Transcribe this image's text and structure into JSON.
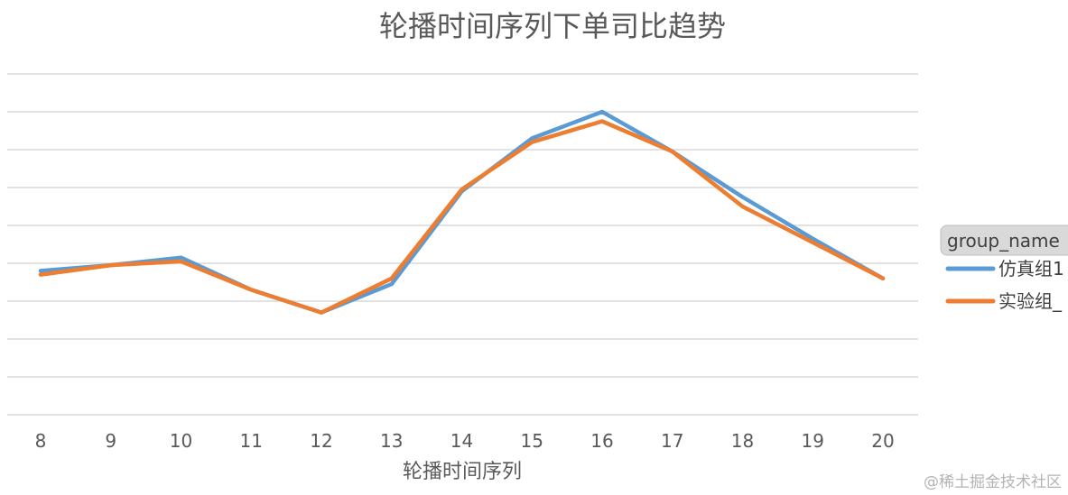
{
  "chart_data": {
    "type": "line",
    "title": "轮播时间序列下单司比趋势",
    "xlabel": "轮播时间序列",
    "ylabel": "",
    "categories": [
      "8",
      "9",
      "10",
      "11",
      "12",
      "13",
      "14",
      "15",
      "16",
      "17",
      "18",
      "19",
      "20"
    ],
    "ylim": [
      0,
      9
    ],
    "grid": true,
    "y_tick_labels_visible": false,
    "legend": {
      "title": "group_name",
      "placement": "right"
    },
    "series": [
      {
        "name": "仿真组1",
        "color": "#5b9bd5",
        "values": [
          3.8,
          3.95,
          4.15,
          3.3,
          2.7,
          3.45,
          5.9,
          7.3,
          8.0,
          6.95,
          5.75,
          4.65,
          3.6
        ]
      },
      {
        "name": "实验组_",
        "color": "#ed7d31",
        "values": [
          3.7,
          3.95,
          4.05,
          3.3,
          2.7,
          3.6,
          5.95,
          7.2,
          7.75,
          6.95,
          5.5,
          4.55,
          3.6
        ]
      }
    ]
  },
  "watermark": "@稀土掘金技术社区"
}
